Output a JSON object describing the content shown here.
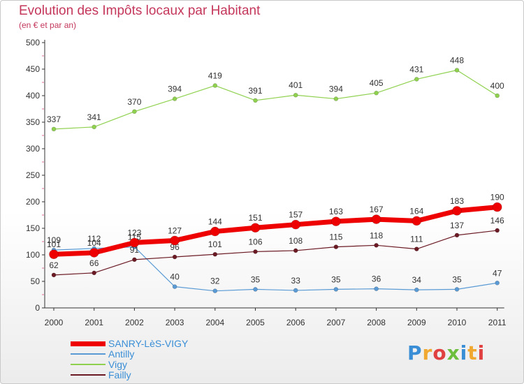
{
  "header": {
    "title": "Evolution des Impôts locaux par Habitant",
    "subtitle": "(en € et par an)"
  },
  "logo": {
    "text": "Proxiti",
    "colors": [
      "#3a8ed6",
      "#f0a830",
      "#e04040",
      "#6cbf3c",
      "#3a8ed6",
      "#f0a830",
      "#e04040"
    ]
  },
  "chart_data": {
    "type": "line",
    "x": [
      "2000",
      "2001",
      "2002",
      "2003",
      "2004",
      "2005",
      "2006",
      "2007",
      "2008",
      "2009",
      "2010",
      "2011"
    ],
    "ylim": [
      0,
      500
    ],
    "yticks": [
      0,
      50,
      100,
      150,
      200,
      250,
      300,
      350,
      400,
      450,
      500
    ],
    "grid": false,
    "legend_position": "bottom-left",
    "series": [
      {
        "name": "Vigy",
        "color": "#8fd14f",
        "values": [
          337,
          341,
          370,
          394,
          419,
          391,
          401,
          394,
          405,
          431,
          448,
          400
        ]
      },
      {
        "name": "Antilly",
        "color": "#5b9bd5",
        "values": [
          109,
          112,
          115,
          40,
          32,
          35,
          33,
          35,
          36,
          34,
          35,
          47
        ]
      },
      {
        "name": "Failly",
        "color": "#6b1a24",
        "values": [
          62,
          66,
          91,
          96,
          101,
          106,
          108,
          115,
          118,
          111,
          137,
          146
        ]
      },
      {
        "name": "SANRY-LèS-VIGY",
        "color": "#ee0000",
        "values": [
          101,
          104,
          123,
          127,
          144,
          151,
          157,
          163,
          167,
          164,
          183,
          190
        ]
      }
    ],
    "legend_order": [
      "SANRY-LèS-VIGY",
      "Antilly",
      "Vigy",
      "Failly"
    ]
  }
}
